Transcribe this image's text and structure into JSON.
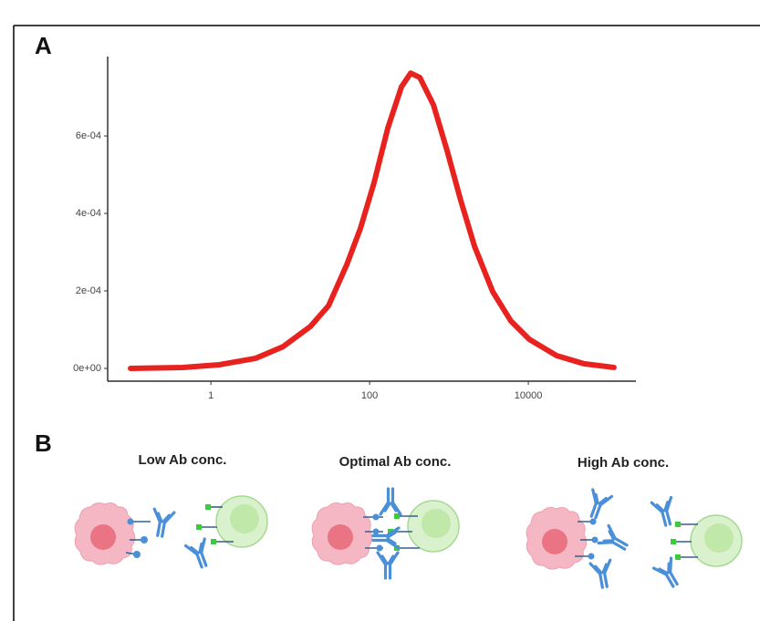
{
  "chart_data": {
    "type": "line",
    "x_scale": "log",
    "x": [
      0.097,
      0.44,
      1.27,
      3.66,
      8.1,
      17.9,
      30.4,
      51.6,
      76.8,
      114,
      170,
      252,
      329,
      429,
      638,
      948,
      1410,
      2100,
      3560,
      6050,
      10300,
      22700,
      50200,
      120000
    ],
    "values": [
      0,
      2.4e-06,
      9.4e-06,
      2.6e-05,
      5.6e-05,
      0.000108,
      0.000162,
      0.000268,
      0.000362,
      0.00048,
      0.000621,
      0.000727,
      0.000762,
      0.000751,
      0.00068,
      0.000562,
      0.000433,
      0.000315,
      0.000198,
      0.000122,
      7.5e-05,
      3.3e-05,
      1.2e-05,
      2.4e-06
    ],
    "color": "#e8231f",
    "xlim": [
      0.05,
      227000
    ],
    "xticks": [
      1,
      100,
      10000
    ],
    "ylim": [
      -3.3e-05,
      0.000805
    ],
    "yticks": [
      {
        "value": 0,
        "label": "0e+00"
      },
      {
        "value": 0.0002,
        "label": "2e-04"
      },
      {
        "value": 0.0004,
        "label": "4e-04"
      },
      {
        "value": 0.0006,
        "label": "6e-04"
      }
    ]
  },
  "panel_labels": [
    "A",
    "B"
  ],
  "diagram": {
    "conditions": [
      "Low Ab conc.",
      "Optimal Ab conc.",
      "High Ab conc."
    ]
  }
}
